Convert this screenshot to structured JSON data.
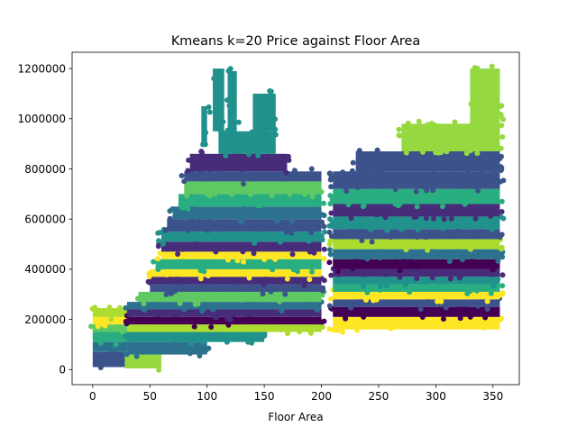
{
  "chart_data": {
    "type": "scatter",
    "title": "Kmeans k=20 Price against Floor Area",
    "xlabel": "Floor Area",
    "ylabel": "",
    "xlim": [
      -18,
      373
    ],
    "ylim": [
      -60000,
      1265000
    ],
    "x_ticks": [
      0,
      50,
      100,
      150,
      200,
      250,
      300,
      350
    ],
    "y_ticks": [
      0,
      200000,
      400000,
      600000,
      800000,
      1000000,
      1200000
    ],
    "y_tick_labels": [
      "0",
      "200000",
      "400000",
      "600000",
      "800000",
      "1000000",
      "1200000"
    ],
    "grid": false,
    "legend": "none",
    "cluster_colors": [
      "#440154",
      "#472c7a",
      "#3b528b",
      "#2c728e",
      "#21918c",
      "#28ae80",
      "#5ec962",
      "#addc30",
      "#fde725",
      "#95d840"
    ],
    "bands": [
      {
        "x": [
          0,
          30
        ],
        "y": [
          10000,
          70000
        ],
        "color": "#3b528b"
      },
      {
        "x": [
          0,
          30
        ],
        "y": [
          70000,
          110000
        ],
        "color": "#2c728e"
      },
      {
        "x": [
          0,
          30
        ],
        "y": [
          110000,
          150000
        ],
        "color": "#28ae80"
      },
      {
        "x": [
          0,
          30
        ],
        "y": [
          150000,
          180000
        ],
        "color": "#5ec962"
      },
      {
        "x": [
          0,
          30
        ],
        "y": [
          180000,
          210000
        ],
        "color": "#fde725"
      },
      {
        "x": [
          0,
          30
        ],
        "y": [
          210000,
          245000
        ],
        "color": "#addc30"
      },
      {
        "x": [
          28,
          60
        ],
        "y": [
          5000,
          60000
        ],
        "color": "#95d840"
      },
      {
        "x": [
          30,
          100
        ],
        "y": [
          60000,
          110000
        ],
        "color": "#2c728e"
      },
      {
        "x": [
          30,
          150
        ],
        "y": [
          110000,
          150000
        ],
        "color": "#21918c"
      },
      {
        "x": [
          30,
          200
        ],
        "y": [
          150000,
          180000
        ],
        "color": "#addc30"
      },
      {
        "x": [
          30,
          200
        ],
        "y": [
          180000,
          210000
        ],
        "color": "#440154"
      },
      {
        "x": [
          30,
          200
        ],
        "y": [
          210000,
          240000
        ],
        "color": "#472c7a"
      },
      {
        "x": [
          30,
          200
        ],
        "y": [
          240000,
          270000
        ],
        "color": "#2c728e"
      },
      {
        "x": [
          40,
          200
        ],
        "y": [
          270000,
          310000
        ],
        "color": "#5ec962"
      },
      {
        "x": [
          50,
          200
        ],
        "y": [
          310000,
          340000
        ],
        "color": "#3b528b"
      },
      {
        "x": [
          50,
          200
        ],
        "y": [
          340000,
          370000
        ],
        "color": "#472c7a"
      },
      {
        "x": [
          50,
          200
        ],
        "y": [
          370000,
          400000
        ],
        "color": "#fde725"
      },
      {
        "x": [
          55,
          200
        ],
        "y": [
          400000,
          440000
        ],
        "color": "#28ae80"
      },
      {
        "x": [
          60,
          200
        ],
        "y": [
          440000,
          470000
        ],
        "color": "#fde725"
      },
      {
        "x": [
          60,
          200
        ],
        "y": [
          470000,
          510000
        ],
        "color": "#472c7a"
      },
      {
        "x": [
          60,
          200
        ],
        "y": [
          510000,
          550000
        ],
        "color": "#21918c"
      },
      {
        "x": [
          65,
          200
        ],
        "y": [
          550000,
          600000
        ],
        "color": "#3b528b"
      },
      {
        "x": [
          70,
          200
        ],
        "y": [
          600000,
          650000
        ],
        "color": "#2c728e"
      },
      {
        "x": [
          75,
          200
        ],
        "y": [
          650000,
          700000
        ],
        "color": "#28ae80"
      },
      {
        "x": [
          80,
          200
        ],
        "y": [
          700000,
          750000
        ],
        "color": "#5ec962"
      },
      {
        "x": [
          80,
          200
        ],
        "y": [
          750000,
          790000
        ],
        "color": "#3b528b"
      },
      {
        "x": [
          85,
          170
        ],
        "y": [
          790000,
          860000
        ],
        "color": "#472c7a"
      },
      {
        "x": [
          110,
          160
        ],
        "y": [
          860000,
          950000
        ],
        "color": "#21918c"
      },
      {
        "x": [
          210,
          356
        ],
        "y": [
          160000,
          210000
        ],
        "color": "#fde725"
      },
      {
        "x": [
          210,
          356
        ],
        "y": [
          210000,
          250000
        ],
        "color": "#440154"
      },
      {
        "x": [
          210,
          356
        ],
        "y": [
          250000,
          280000
        ],
        "color": "#3b528b"
      },
      {
        "x": [
          210,
          356
        ],
        "y": [
          280000,
          310000
        ],
        "color": "#fde725"
      },
      {
        "x": [
          210,
          356
        ],
        "y": [
          310000,
          340000
        ],
        "color": "#28ae80"
      },
      {
        "x": [
          210,
          356
        ],
        "y": [
          340000,
          370000
        ],
        "color": "#21918c"
      },
      {
        "x": [
          210,
          356
        ],
        "y": [
          370000,
          400000
        ],
        "color": "#472c7a"
      },
      {
        "x": [
          210,
          356
        ],
        "y": [
          400000,
          440000
        ],
        "color": "#440154"
      },
      {
        "x": [
          210,
          356
        ],
        "y": [
          440000,
          480000
        ],
        "color": "#2c728e"
      },
      {
        "x": [
          210,
          356
        ],
        "y": [
          480000,
          520000
        ],
        "color": "#addc30"
      },
      {
        "x": [
          210,
          356
        ],
        "y": [
          520000,
          560000
        ],
        "color": "#3b528b"
      },
      {
        "x": [
          210,
          356
        ],
        "y": [
          560000,
          610000
        ],
        "color": "#21918c"
      },
      {
        "x": [
          210,
          356
        ],
        "y": [
          610000,
          660000
        ],
        "color": "#472c7a"
      },
      {
        "x": [
          210,
          356
        ],
        "y": [
          660000,
          720000
        ],
        "color": "#28ae80"
      },
      {
        "x": [
          210,
          356
        ],
        "y": [
          720000,
          790000
        ],
        "color": "#3b528b"
      },
      {
        "x": [
          230,
          356
        ],
        "y": [
          790000,
          870000
        ],
        "color": "#3b528b"
      },
      {
        "x": [
          270,
          356
        ],
        "y": [
          870000,
          980000
        ],
        "color": "#95d840"
      },
      {
        "x": [
          330,
          356
        ],
        "y": [
          980000,
          1200000
        ],
        "color": "#95d840"
      }
    ],
    "spikes": [
      {
        "x": [
          105,
          115
        ],
        "y": [
          950000,
          1200000
        ],
        "color": "#21918c"
      },
      {
        "x": [
          118,
          126
        ],
        "y": [
          950000,
          1190000
        ],
        "color": "#21918c"
      },
      {
        "x": [
          140,
          160
        ],
        "y": [
          950000,
          1100000
        ],
        "color": "#21918c"
      },
      {
        "x": [
          95,
          100
        ],
        "y": [
          900000,
          1050000
        ],
        "color": "#21918c"
      }
    ]
  }
}
